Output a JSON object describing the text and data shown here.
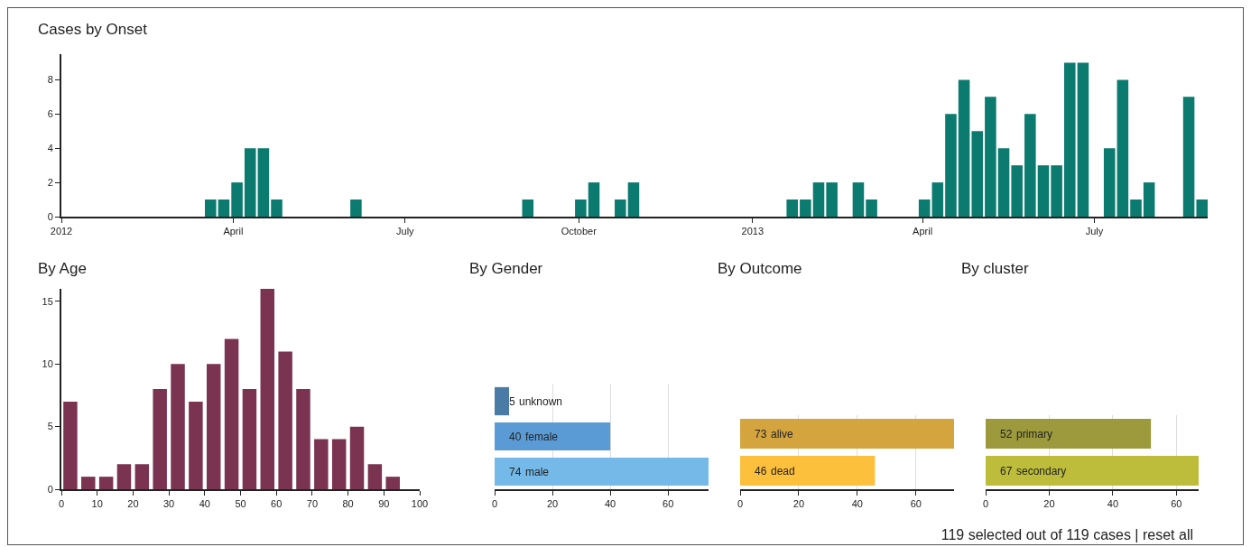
{
  "chart_data": [
    {
      "type": "bar",
      "title": "Cases by Onset",
      "x": [
        "2012-03-20",
        "2012-03-27",
        "2012-04-03",
        "2012-04-10",
        "2012-04-17",
        "2012-04-24",
        "2012-06-05",
        "2012-09-04",
        "2012-10-02",
        "2012-10-09",
        "2012-10-23",
        "2012-10-30",
        "2013-01-22",
        "2013-01-29",
        "2013-02-05",
        "2013-02-12",
        "2013-02-26",
        "2013-03-05",
        "2013-04-02",
        "2013-04-09",
        "2013-04-16",
        "2013-04-23",
        "2013-04-30",
        "2013-05-07",
        "2013-05-14",
        "2013-05-21",
        "2013-05-28",
        "2013-06-04",
        "2013-06-11",
        "2013-06-18",
        "2013-06-25",
        "2013-07-09",
        "2013-07-16",
        "2013-07-23",
        "2013-07-30",
        "2013-08-20",
        "2013-08-27"
      ],
      "values": [
        1,
        1,
        2,
        4,
        4,
        1,
        1,
        1,
        1,
        2,
        1,
        2,
        1,
        1,
        2,
        2,
        2,
        1,
        1,
        2,
        6,
        8,
        5,
        7,
        4,
        3,
        6,
        3,
        3,
        9,
        9,
        4,
        8,
        1,
        2,
        7,
        1
      ],
      "color": "#0b7a6f",
      "xlim": [
        "2012-01-01",
        "2013-08-30"
      ],
      "xticks": [
        {
          "value": "2012-01-01",
          "label": "2012"
        },
        {
          "value": "2012-04-01",
          "label": "April"
        },
        {
          "value": "2012-07-01",
          "label": "July"
        },
        {
          "value": "2012-10-01",
          "label": "October"
        },
        {
          "value": "2013-01-01",
          "label": "2013"
        },
        {
          "value": "2013-04-01",
          "label": "April"
        },
        {
          "value": "2013-07-01",
          "label": "July"
        }
      ],
      "ylim": [
        0,
        9.5
      ],
      "yticks": [
        0,
        2,
        4,
        6,
        8
      ]
    },
    {
      "type": "histogram",
      "title": "By Age",
      "bins": [
        0,
        5,
        10,
        15,
        20,
        25,
        30,
        35,
        40,
        45,
        50,
        55,
        60,
        65,
        70,
        75,
        80,
        85,
        90,
        95
      ],
      "values": [
        7,
        1,
        1,
        2,
        2,
        8,
        10,
        7,
        10,
        12,
        8,
        16,
        11,
        8,
        4,
        4,
        5,
        2,
        1
      ],
      "color": "#7a3350",
      "xlim": [
        0,
        100
      ],
      "xticks": [
        0,
        10,
        20,
        30,
        40,
        50,
        60,
        70,
        80,
        90,
        100
      ],
      "ylim": [
        0,
        16
      ],
      "yticks": [
        0,
        5,
        10,
        15
      ]
    },
    {
      "type": "bar",
      "orientation": "horizontal",
      "title": "By Gender",
      "categories": [
        "unknown",
        "female",
        "male"
      ],
      "values": [
        5,
        40,
        74
      ],
      "colors": [
        "#4a7aa6",
        "#5b9bd5",
        "#74b9e7"
      ],
      "xlim": [
        0,
        74
      ],
      "xticks": [
        0,
        20,
        40,
        60
      ],
      "grid": "x",
      "data_labels": true,
      "tick_labels": "x"
    },
    {
      "type": "bar",
      "orientation": "horizontal",
      "title": "By Outcome",
      "categories": [
        "alive",
        "dead"
      ],
      "values": [
        73,
        46
      ],
      "colors": [
        "#d4a43f",
        "#fdc03c"
      ],
      "xlim": [
        0,
        73
      ],
      "xticks": [
        0,
        20,
        40,
        60
      ],
      "grid": "x",
      "data_labels": true,
      "tick_labels": "x"
    },
    {
      "type": "bar",
      "orientation": "horizontal",
      "title": "By cluster",
      "categories": [
        "primary",
        "secondary"
      ],
      "values": [
        52,
        67
      ],
      "colors": [
        "#9c9a3c",
        "#bdbd3b"
      ],
      "xlim": [
        0,
        67
      ],
      "xticks": [
        0,
        20,
        40,
        60
      ],
      "grid": "x",
      "data_labels": true,
      "tick_labels": "x",
      "annotations": [
        "119 selected out of 119 cases | reset all"
      ]
    }
  ]
}
